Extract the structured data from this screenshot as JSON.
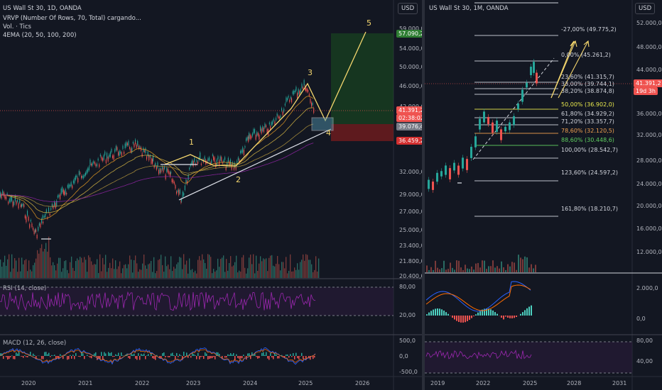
{
  "left": {
    "title": "US Wall St 30, 1D, OANDA",
    "vrvp": "VRVP (Number Of Rows, 70, Total) cargando...",
    "vol": "Vol. · Tics",
    "ema": "4EMA (20, 50, 100, 200)",
    "currency": "USD",
    "price_ticks": [
      "59.000,0",
      "54.000,0",
      "50.000,0",
      "46.000,0",
      "42.000,0",
      "35.000,0",
      "32.000,0",
      "29.000,0",
      "27.000,0",
      "25.000,0",
      "23.400,0",
      "21.800,0",
      "20.400,0"
    ],
    "tags": {
      "target": "57.090,2",
      "current": "41.391,2",
      "countdown": "02:38:02",
      "entry": "39.076,4",
      "stop": "36.459,2"
    },
    "wave_labels": [
      "1",
      "2",
      "3",
      "4",
      "5"
    ],
    "rsi_label": "RSI (14, close)",
    "rsi_ticks": [
      "80,00",
      "20,00"
    ],
    "macd_label": "MACD (12, 26, close)",
    "macd_ticks": [
      "500,0",
      "0,0",
      "-500,0"
    ],
    "time_ticks": [
      "2020",
      "2021",
      "2022",
      "2023",
      "2024",
      "2025",
      "2026"
    ]
  },
  "right": {
    "title": "US Wall St 30, 1M, OANDA",
    "currency": "USD",
    "price_ticks": [
      "52.000,0",
      "48.000,0",
      "44.000,0",
      "36.000,0",
      "32.000,0",
      "28.000,0",
      "24.000,0",
      "20.000,0",
      "16.000,0",
      "12.000,0"
    ],
    "tags": {
      "current": "41.391,2",
      "countdown": "19d 3h"
    },
    "fib_levels": [
      {
        "label": "-27,00% (49.775,2)",
        "color": "#d1d4dc"
      },
      {
        "label": "0,00% (45.261,2)",
        "color": "#d1d4dc"
      },
      {
        "label": "23,60% (41.315,7)",
        "color": "#d1d4dc"
      },
      {
        "label": "33,00% (39.744,1)",
        "color": "#d1d4dc"
      },
      {
        "label": "38,20% (38.874,8)",
        "color": "#d1d4dc"
      },
      {
        "label": "50,00% (36.902,0)",
        "color": "#e8e84d"
      },
      {
        "label": "61,80% (34.929,2)",
        "color": "#d1d4dc"
      },
      {
        "label": "71,20% (33.357,7)",
        "color": "#d1d4dc"
      },
      {
        "label": "78,60% (32.120,5)",
        "color": "#f0a050"
      },
      {
        "label": "88,60% (30.448,6)",
        "color": "#5fcf5f"
      },
      {
        "label": "100,00% (28.542,7)",
        "color": "#d1d4dc"
      },
      {
        "label": "123,60% (24.597,2)",
        "color": "#d1d4dc"
      },
      {
        "label": "161,80% (18.210,7)",
        "color": "#d1d4dc"
      }
    ],
    "macd_ticks": [
      "2.000,0",
      "0,0"
    ],
    "rsi_ticks": [
      "80,00",
      "40,00"
    ],
    "time_ticks": [
      "2019",
      "2022",
      "2025",
      "2028",
      "2031"
    ]
  },
  "colors": {
    "bg": "#131722",
    "up": "#26a69a",
    "down": "#ef5350",
    "wave": "#f5d76e",
    "rsi": "#9c27b0",
    "target_green": "#1e8a3c",
    "stop_red": "#b71c1c"
  }
}
